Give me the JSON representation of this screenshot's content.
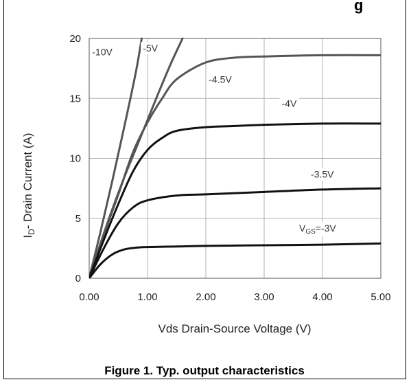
{
  "header_fragment": "g",
  "caption": "Figure 1. Typ. output characteristics",
  "chart_data": {
    "type": "line",
    "title": "",
    "xlabel": "Vds Drain-Source Voltage (V)",
    "ylabel_main": "I",
    "ylabel_sub": "D",
    "ylabel_rest": "- Drain Current (A)",
    "xlim": [
      0,
      5
    ],
    "ylim": [
      0,
      20
    ],
    "x_ticks": [
      0,
      1,
      2,
      3,
      4,
      5
    ],
    "x_tick_labels": [
      "0.00",
      "1.00",
      "2.00",
      "3.00",
      "4.00",
      "5.00"
    ],
    "y_ticks": [
      0,
      5,
      10,
      15,
      20
    ],
    "y_tick_labels": [
      "0",
      "5",
      "10",
      "15",
      "20"
    ],
    "grid": true,
    "series": [
      {
        "name": "-10V",
        "color": "#555555",
        "x": [
          0,
          0.2,
          0.4,
          0.6,
          0.8,
          0.9
        ],
        "y": [
          0,
          4,
          8.2,
          12.6,
          17.2,
          20
        ]
      },
      {
        "name": "-5V",
        "color": "#555555",
        "x": [
          0,
          0.2,
          0.4,
          0.6,
          0.8,
          1.0,
          1.2,
          1.4,
          1.6
        ],
        "y": [
          0,
          3,
          5.8,
          8.4,
          10.8,
          13.2,
          15.6,
          17.9,
          20
        ]
      },
      {
        "name": "-4.5V",
        "color": "#555555",
        "x": [
          0,
          0.25,
          0.5,
          0.75,
          1.0,
          1.25,
          1.5,
          2.0,
          2.5,
          3.0,
          4.0,
          5.0
        ],
        "y": [
          0,
          3.6,
          7,
          10.5,
          13,
          15,
          16.6,
          18,
          18.4,
          18.5,
          18.6,
          18.6
        ]
      },
      {
        "name": "-4V",
        "color": "#111111",
        "x": [
          0,
          0.25,
          0.5,
          0.75,
          1.0,
          1.25,
          1.5,
          2.0,
          2.5,
          3.0,
          4.0,
          5.0
        ],
        "y": [
          0,
          3.2,
          6.2,
          8.9,
          10.7,
          11.7,
          12.3,
          12.6,
          12.7,
          12.8,
          12.9,
          12.9
        ]
      },
      {
        "name": "-3.5V",
        "color": "#111111",
        "x": [
          0,
          0.25,
          0.5,
          0.75,
          1.0,
          1.5,
          2.0,
          3.0,
          4.0,
          5.0
        ],
        "y": [
          0,
          2.5,
          4.6,
          5.9,
          6.5,
          6.9,
          7.0,
          7.2,
          7.4,
          7.5
        ]
      },
      {
        "name": "V_GS=-3V",
        "color": "#111111",
        "x": [
          0,
          0.2,
          0.4,
          0.6,
          0.8,
          1.0,
          1.5,
          2.0,
          3.0,
          4.0,
          5.0
        ],
        "y": [
          0,
          1.2,
          2.0,
          2.4,
          2.55,
          2.6,
          2.65,
          2.7,
          2.75,
          2.8,
          2.9
        ]
      }
    ],
    "curve_labels": [
      {
        "text": "-10V",
        "x": 0.05,
        "y": 18.6
      },
      {
        "text": "-5V",
        "x": 0.92,
        "y": 18.9
      },
      {
        "text": "-4.5V",
        "x": 2.05,
        "y": 16.3
      },
      {
        "text": "-4V",
        "x": 3.3,
        "y": 14.3
      },
      {
        "text": "-3.5V",
        "x": 3.8,
        "y": 8.4
      },
      {
        "text": "V_GS=-3V",
        "x": 3.6,
        "y": 3.9
      }
    ]
  }
}
